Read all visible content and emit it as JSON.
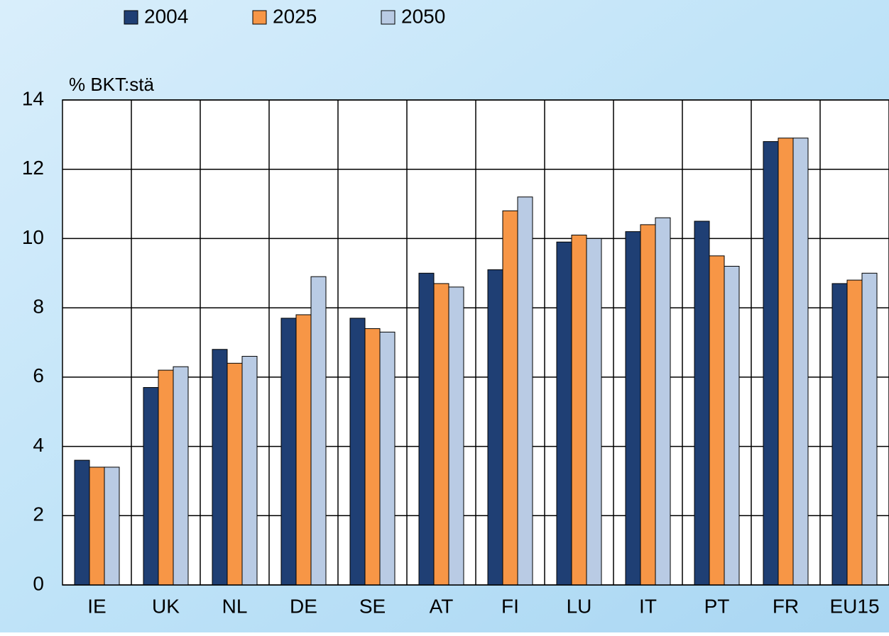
{
  "chart_data": {
    "type": "bar",
    "y_axis_label": "% BKT:stä",
    "categories": [
      "IE",
      "UK",
      "NL",
      "DE",
      "SE",
      "AT",
      "FI",
      "LU",
      "IT",
      "PT",
      "FR",
      "EU15"
    ],
    "series": [
      {
        "name": "2004",
        "color": "#1f3f74",
        "values": [
          3.6,
          5.7,
          6.8,
          7.7,
          7.7,
          9.0,
          9.1,
          9.9,
          10.2,
          10.5,
          12.8,
          8.7
        ]
      },
      {
        "name": "2025",
        "color": "#f79646",
        "values": [
          3.4,
          6.2,
          6.4,
          7.8,
          7.4,
          8.7,
          10.8,
          10.1,
          10.4,
          9.5,
          12.9,
          8.8
        ]
      },
      {
        "name": "2050",
        "color": "#b9cbe4",
        "values": [
          3.4,
          6.3,
          6.6,
          8.9,
          7.3,
          8.6,
          11.2,
          10.0,
          10.6,
          9.2,
          12.9,
          9.0
        ]
      }
    ],
    "ylim": [
      0,
      14
    ],
    "yticks": [
      0,
      2,
      4,
      6,
      8,
      10,
      12,
      14
    ],
    "grid": true,
    "legend": "top"
  }
}
